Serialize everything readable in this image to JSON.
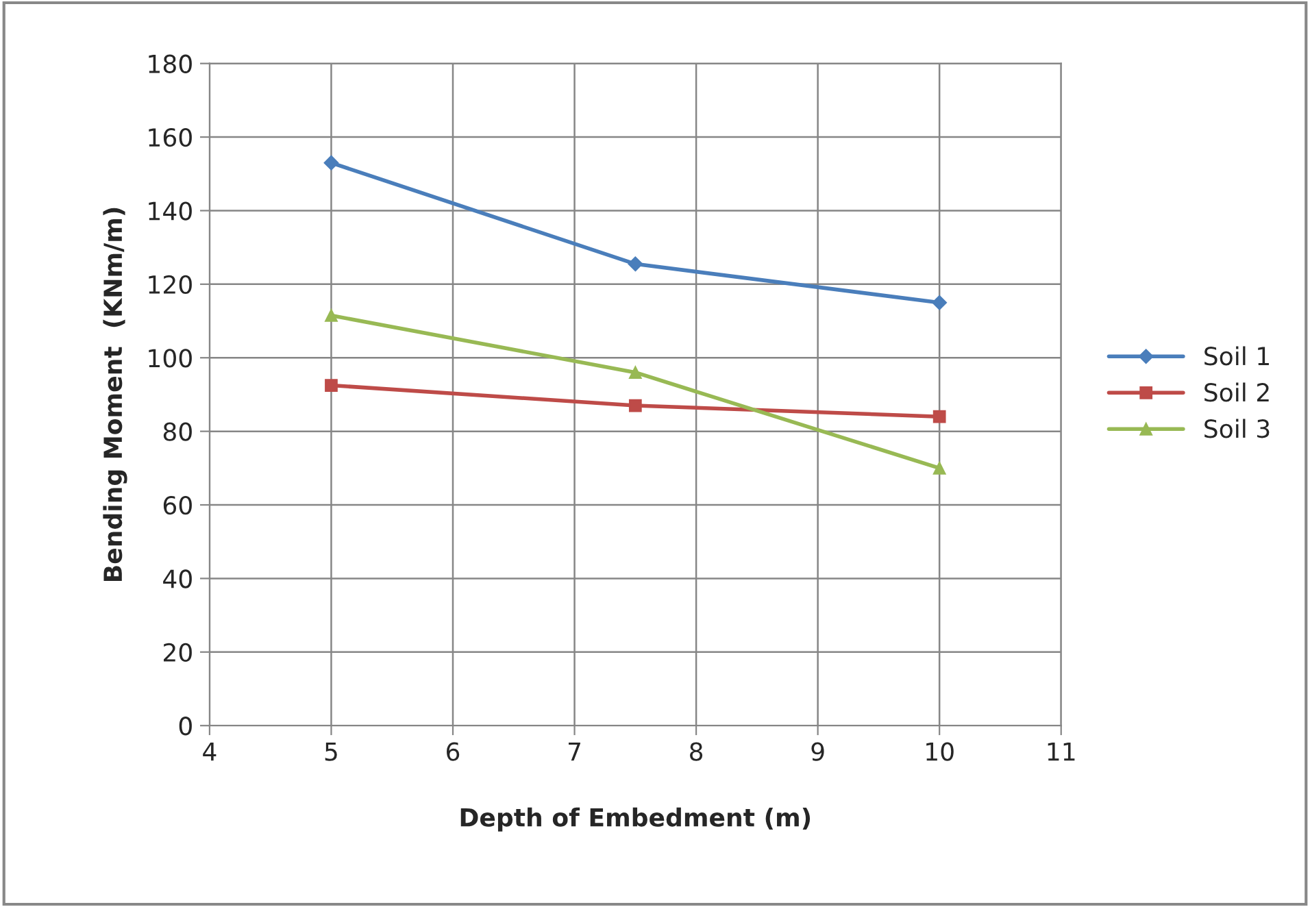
{
  "chart_data": {
    "type": "line",
    "xlabel": "Depth of Embedment (m)",
    "ylabel": "Bending Moment  (KNm/m)",
    "x": [
      5,
      7.5,
      10
    ],
    "series": [
      {
        "name": "Soil 1",
        "color": "#4a7ebb",
        "marker": "diamond",
        "values": [
          153,
          125.5,
          115
        ]
      },
      {
        "name": "Soil 2",
        "color": "#be4b48",
        "marker": "square",
        "values": [
          92.5,
          87,
          84
        ]
      },
      {
        "name": "Soil 3",
        "color": "#98b954",
        "marker": "triangle",
        "values": [
          111.5,
          96,
          70
        ]
      }
    ],
    "xlim": [
      4,
      11
    ],
    "xticks": [
      4,
      5,
      6,
      7,
      8,
      9,
      10,
      11
    ],
    "ylim": [
      0,
      180
    ],
    "yticks": [
      0,
      20,
      40,
      60,
      80,
      100,
      120,
      140,
      160,
      180
    ],
    "grid": true,
    "legend": "right",
    "line_style": "solid"
  }
}
